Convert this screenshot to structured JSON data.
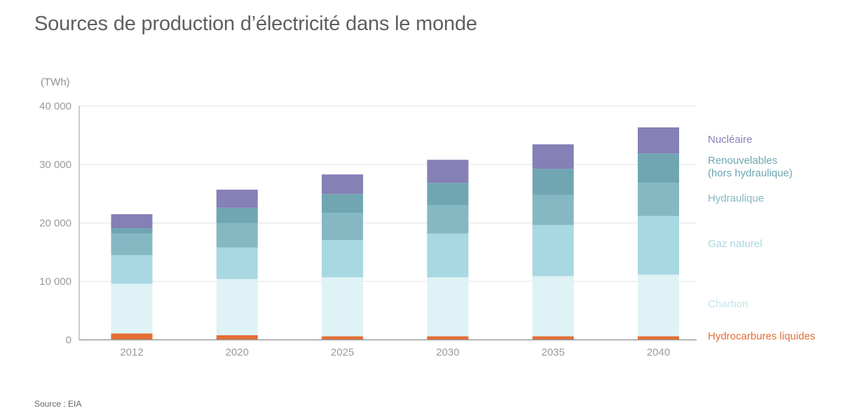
{
  "title": "Sources de production d’électricité dans le monde",
  "source": "Source : EIA",
  "chart_data": {
    "type": "bar",
    "stacked": true,
    "title": "Sources de production d’électricité dans le monde",
    "ylabel": "(TWh)",
    "xlabel": "",
    "ylim": [
      0,
      40000
    ],
    "yticks": [
      0,
      10000,
      20000,
      30000,
      40000
    ],
    "ytick_labels": [
      "0",
      "10 000",
      "20 000",
      "30 000",
      "40 000"
    ],
    "grid": true,
    "legend_position": "right",
    "categories": [
      "2012",
      "2020",
      "2025",
      "2030",
      "2035",
      "2040"
    ],
    "series": [
      {
        "name": "Hydrocarbures liquides",
        "color": "#e56d33",
        "values": [
          1100,
          800,
          600,
          600,
          600,
          600
        ]
      },
      {
        "name": "Charbon",
        "color": "#dff2f5",
        "legend_color": "#c5e5ec",
        "values": [
          8500,
          9600,
          10100,
          10100,
          10300,
          10550
        ]
      },
      {
        "name": "Gaz naturel",
        "color": "#a8d8e2",
        "values": [
          4900,
          5400,
          6350,
          7500,
          8750,
          10050
        ]
      },
      {
        "name": "Hydraulique",
        "color": "#85b8c3",
        "values": [
          3700,
          4200,
          4650,
          4850,
          5150,
          5650
        ]
      },
      {
        "name": "Renouvelables\n(hors hydraulique)",
        "line1": "Renouvelables",
        "line2": "(hors hydraulique)",
        "color": "#6fa6b2",
        "values": [
          900,
          2600,
          3250,
          3800,
          4450,
          5050
        ]
      },
      {
        "name": "Nucléaire",
        "color": "#8580b6",
        "values": [
          2400,
          3100,
          3350,
          3950,
          4200,
          4450
        ]
      }
    ]
  }
}
